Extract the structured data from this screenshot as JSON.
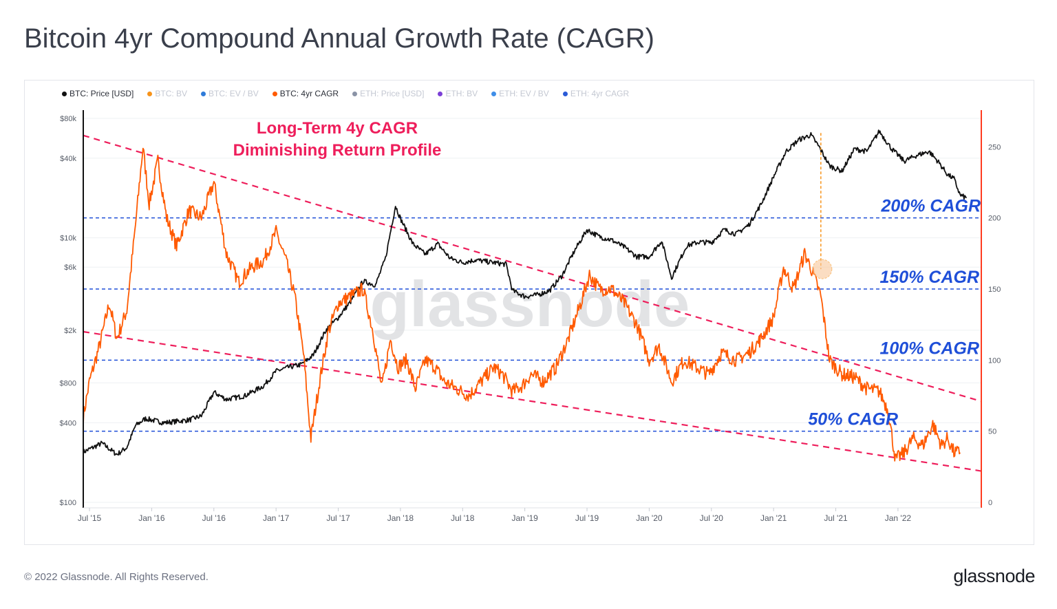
{
  "title": "Bitcoin 4yr Compound Annual Growth Rate (CAGR)",
  "footer": {
    "copyright": "© 2022 Glassnode. All Rights Reserved.",
    "brand": "glassnode"
  },
  "watermark": "glassnode",
  "legend": [
    {
      "label": "BTC: Price [USD]",
      "color": "#111111",
      "active": true
    },
    {
      "label": "BTC: BV",
      "color": "#f7931a",
      "active": false
    },
    {
      "label": "BTC: EV / BV",
      "color": "#2f7bd9",
      "active": false
    },
    {
      "label": "BTC: 4yr CAGR",
      "color": "#ff5a00",
      "active": true
    },
    {
      "label": "ETH: Price [USD]",
      "color": "#8a93a6",
      "active": false
    },
    {
      "label": "ETH: BV",
      "color": "#7b3fd6",
      "active": false
    },
    {
      "label": "ETH: EV / BV",
      "color": "#3f8ee8",
      "active": false
    },
    {
      "label": "ETH: 4yr CAGR",
      "color": "#2a5bd7",
      "active": false
    }
  ],
  "colors": {
    "price": "#111111",
    "cagr": "#ff5a00",
    "trend": "#ee1e5b",
    "level": "#1f4fd8",
    "right_axis": "#ff3b1f"
  },
  "annotation": {
    "line1": "Long-Term 4y CAGR",
    "line2": "Diminishing Return Profile"
  },
  "chart_data": {
    "type": "line",
    "x_ticks": [
      "Jul '15",
      "Jan '16",
      "Jul '16",
      "Jan '17",
      "Jul '17",
      "Jan '18",
      "Jul '18",
      "Jan '19",
      "Jul '19",
      "Jan '20",
      "Jul '20",
      "Jan '21",
      "Jul '21",
      "Jan '22"
    ],
    "x_tick_dates": [
      2015.5,
      2016.0,
      2016.5,
      2017.0,
      2017.5,
      2018.0,
      2018.5,
      2019.0,
      2019.5,
      2020.0,
      2020.5,
      2021.0,
      2021.5,
      2022.0
    ],
    "xlim": [
      2015.45,
      2022.67
    ],
    "y_left": {
      "scale": "log",
      "unit": "USD",
      "range": [
        100,
        80000
      ],
      "ticks": [
        100,
        400,
        800,
        2000,
        6000,
        10000,
        40000,
        80000
      ],
      "tick_labels": [
        "$100",
        "$400",
        "$800",
        "$2k",
        "$6k",
        "$10k",
        "$40k",
        "$80k"
      ]
    },
    "y_right": {
      "scale": "linear",
      "unit": "%",
      "range": [
        0,
        270
      ],
      "ticks": [
        0,
        50,
        100,
        150,
        200,
        250
      ],
      "tick_labels": [
        "0",
        "50",
        "100",
        "150",
        "200",
        "250"
      ]
    },
    "levels": [
      {
        "value": 50,
        "label": "50% CAGR"
      },
      {
        "value": 100,
        "label": "100% CAGR"
      },
      {
        "value": 150,
        "label": "150% CAGR"
      },
      {
        "value": 200,
        "label": "200% CAGR"
      }
    ],
    "series": [
      {
        "name": "BTC: Price [USD]",
        "axis": "left",
        "points": [
          [
            2015.45,
            240
          ],
          [
            2015.6,
            280
          ],
          [
            2015.72,
            230
          ],
          [
            2015.8,
            260
          ],
          [
            2015.87,
            380
          ],
          [
            2015.95,
            430
          ],
          [
            2016.1,
            400
          ],
          [
            2016.3,
            420
          ],
          [
            2016.4,
            450
          ],
          [
            2016.5,
            680
          ],
          [
            2016.6,
            600
          ],
          [
            2016.75,
            640
          ],
          [
            2016.9,
            760
          ],
          [
            2017.0,
            980
          ],
          [
            2017.1,
            1050
          ],
          [
            2017.2,
            1100
          ],
          [
            2017.3,
            1300
          ],
          [
            2017.4,
            2000
          ],
          [
            2017.5,
            2500
          ],
          [
            2017.6,
            3300
          ],
          [
            2017.7,
            4700
          ],
          [
            2017.8,
            4400
          ],
          [
            2017.88,
            7000
          ],
          [
            2017.96,
            17500
          ],
          [
            2018.0,
            14000
          ],
          [
            2018.1,
            9000
          ],
          [
            2018.2,
            7500
          ],
          [
            2018.3,
            9000
          ],
          [
            2018.4,
            7000
          ],
          [
            2018.5,
            6500
          ],
          [
            2018.6,
            6800
          ],
          [
            2018.75,
            6500
          ],
          [
            2018.85,
            6300
          ],
          [
            2018.9,
            4000
          ],
          [
            2019.0,
            3600
          ],
          [
            2019.1,
            3700
          ],
          [
            2019.2,
            4000
          ],
          [
            2019.3,
            5200
          ],
          [
            2019.4,
            8000
          ],
          [
            2019.5,
            11500
          ],
          [
            2019.6,
            10200
          ],
          [
            2019.7,
            9600
          ],
          [
            2019.8,
            8500
          ],
          [
            2019.9,
            7200
          ],
          [
            2020.0,
            7200
          ],
          [
            2020.1,
            9500
          ],
          [
            2020.18,
            5000
          ],
          [
            2020.3,
            8700
          ],
          [
            2020.4,
            9300
          ],
          [
            2020.5,
            9200
          ],
          [
            2020.6,
            11500
          ],
          [
            2020.7,
            10700
          ],
          [
            2020.8,
            12500
          ],
          [
            2020.9,
            18000
          ],
          [
            2021.0,
            29000
          ],
          [
            2021.1,
            45000
          ],
          [
            2021.2,
            55000
          ],
          [
            2021.3,
            60000
          ],
          [
            2021.37,
            48000
          ],
          [
            2021.45,
            35000
          ],
          [
            2021.55,
            32000
          ],
          [
            2021.65,
            47000
          ],
          [
            2021.75,
            45000
          ],
          [
            2021.85,
            64000
          ],
          [
            2021.95,
            47000
          ],
          [
            2022.05,
            38000
          ],
          [
            2022.15,
            42000
          ],
          [
            2022.25,
            45000
          ],
          [
            2022.32,
            38000
          ],
          [
            2022.4,
            30000
          ],
          [
            2022.45,
            28000
          ],
          [
            2022.5,
            21000
          ],
          [
            2022.55,
            20000
          ]
        ]
      },
      {
        "name": "BTC: 4yr CAGR",
        "axis": "right",
        "points": [
          [
            2015.45,
            60
          ],
          [
            2015.5,
            85
          ],
          [
            2015.58,
            110
          ],
          [
            2015.66,
            140
          ],
          [
            2015.72,
            115
          ],
          [
            2015.8,
            135
          ],
          [
            2015.87,
            195
          ],
          [
            2015.93,
            250
          ],
          [
            2015.98,
            210
          ],
          [
            2016.05,
            240
          ],
          [
            2016.12,
            200
          ],
          [
            2016.2,
            180
          ],
          [
            2016.3,
            205
          ],
          [
            2016.4,
            200
          ],
          [
            2016.5,
            225
          ],
          [
            2016.6,
            175
          ],
          [
            2016.7,
            155
          ],
          [
            2016.8,
            165
          ],
          [
            2016.9,
            170
          ],
          [
            2017.0,
            190
          ],
          [
            2017.08,
            170
          ],
          [
            2017.15,
            145
          ],
          [
            2017.22,
            105
          ],
          [
            2017.28,
            45
          ],
          [
            2017.35,
            85
          ],
          [
            2017.42,
            120
          ],
          [
            2017.5,
            140
          ],
          [
            2017.6,
            145
          ],
          [
            2017.7,
            150
          ],
          [
            2017.78,
            120
          ],
          [
            2017.85,
            80
          ],
          [
            2017.92,
            115
          ],
          [
            2017.98,
            95
          ],
          [
            2018.05,
            100
          ],
          [
            2018.12,
            80
          ],
          [
            2018.2,
            100
          ],
          [
            2018.28,
            95
          ],
          [
            2018.35,
            85
          ],
          [
            2018.45,
            80
          ],
          [
            2018.55,
            75
          ],
          [
            2018.65,
            85
          ],
          [
            2018.75,
            95
          ],
          [
            2018.82,
            90
          ],
          [
            2018.9,
            78
          ],
          [
            2018.98,
            82
          ],
          [
            2019.05,
            90
          ],
          [
            2019.15,
            85
          ],
          [
            2019.25,
            95
          ],
          [
            2019.35,
            115
          ],
          [
            2019.45,
            140
          ],
          [
            2019.52,
            160
          ],
          [
            2019.6,
            150
          ],
          [
            2019.7,
            150
          ],
          [
            2019.8,
            140
          ],
          [
            2019.9,
            125
          ],
          [
            2020.0,
            100
          ],
          [
            2020.08,
            110
          ],
          [
            2020.18,
            85
          ],
          [
            2020.28,
            100
          ],
          [
            2020.38,
            95
          ],
          [
            2020.48,
            90
          ],
          [
            2020.58,
            105
          ],
          [
            2020.7,
            100
          ],
          [
            2020.8,
            105
          ],
          [
            2020.9,
            115
          ],
          [
            2021.0,
            130
          ],
          [
            2021.08,
            165
          ],
          [
            2021.16,
            150
          ],
          [
            2021.25,
            175
          ],
          [
            2021.3,
            165
          ],
          [
            2021.38,
            145
          ],
          [
            2021.45,
            100
          ],
          [
            2021.55,
            90
          ],
          [
            2021.65,
            88
          ],
          [
            2021.75,
            80
          ],
          [
            2021.85,
            78
          ],
          [
            2021.92,
            65
          ],
          [
            2021.98,
            30
          ],
          [
            2022.05,
            35
          ],
          [
            2022.12,
            45
          ],
          [
            2022.2,
            40
          ],
          [
            2022.28,
            55
          ],
          [
            2022.35,
            40
          ],
          [
            2022.4,
            45
          ],
          [
            2022.45,
            35
          ],
          [
            2022.5,
            35
          ]
        ]
      }
    ],
    "trendlines": [
      {
        "name": "upper",
        "axis": "right",
        "from": [
          2015.45,
          258
        ],
        "to": [
          2022.67,
          71
        ]
      },
      {
        "name": "lower",
        "axis": "right",
        "from": [
          2015.45,
          120
        ],
        "to": [
          2022.67,
          22
        ]
      }
    ],
    "marker": {
      "axis": "right",
      "x": 2021.38,
      "y": 164,
      "drop_from_left_usd": 62000
    },
    "grid": true,
    "legend_position": "top-left"
  }
}
